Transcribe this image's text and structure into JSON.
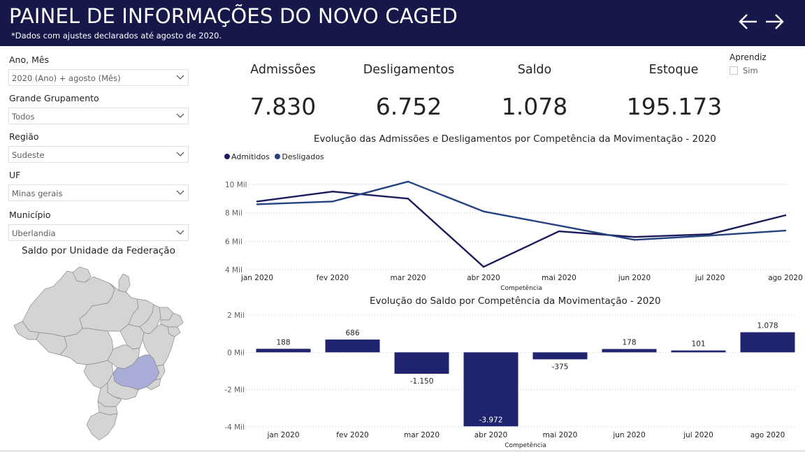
{
  "header": {
    "title": "PAINEL DE INFORMAÇÕES DO NOVO CAGED",
    "subtitle": "*Dados com ajustes declarados até agosto de 2020.",
    "back_icon": "arrow-left-icon",
    "forward_icon": "arrow-right-icon"
  },
  "filters": [
    {
      "label": "Ano, Mês",
      "value": "2020 (Ano) + agosto (Mês)"
    },
    {
      "label": "Grande Grupamento",
      "value": "Todos"
    },
    {
      "label": "Região",
      "value": "Sudeste"
    },
    {
      "label": "UF",
      "value": "Minas gerais"
    },
    {
      "label": "Município",
      "value": "Uberlandia"
    }
  ],
  "map": {
    "title": "Saldo por Unidade da Federação",
    "highlight_color": "#a9acd6",
    "base_color": "#d4d4d4"
  },
  "kpis": [
    {
      "label": "Admissões",
      "value": "7.830"
    },
    {
      "label": "Desligamentos",
      "value": "6.752"
    },
    {
      "label": "Saldo",
      "value": "1.078"
    },
    {
      "label": "Estoque",
      "value": "195.173"
    }
  ],
  "aprendiz": {
    "title": "Aprendiz",
    "option": "Sim",
    "checked": false
  },
  "colors": {
    "header_bg": "#16184a",
    "admitidos": "#1b1c5c",
    "desligados": "#24437f",
    "saldo_bar": "#20246e"
  },
  "chart_data": [
    {
      "type": "line",
      "title": "Evolução das Admissões e Desligamentos por Competência da Movimentação - 2020",
      "xlabel": "Competência",
      "ylabel": "",
      "categories": [
        "jan 2020",
        "fev 2020",
        "mar 2020",
        "abr 2020",
        "mai 2020",
        "jun 2020",
        "jul 2020",
        "ago 2020"
      ],
      "y_ticks": [
        "4 Mil",
        "6 Mil",
        "8 Mil",
        "10 Mil"
      ],
      "y_tick_values": [
        4000,
        6000,
        8000,
        10000
      ],
      "ylim": [
        4000,
        10000
      ],
      "legend_position": "top-left",
      "series": [
        {
          "name": "Admitidos",
          "values": [
            8800,
            9500,
            9000,
            4200,
            6700,
            6300,
            6500,
            7830
          ]
        },
        {
          "name": "Desligados",
          "values": [
            8600,
            8800,
            10200,
            8100,
            7100,
            6100,
            6400,
            6752
          ]
        }
      ],
      "grid": true
    },
    {
      "type": "bar",
      "title": "Evolução do Saldo por Competência da Movimentação - 2020",
      "xlabel": "Competência",
      "ylabel": "",
      "categories": [
        "jan 2020",
        "fev 2020",
        "mar 2020",
        "abr 2020",
        "mai 2020",
        "jun 2020",
        "jul 2020",
        "ago 2020"
      ],
      "values": [
        188,
        686,
        -1150,
        -3972,
        -375,
        178,
        101,
        1078
      ],
      "value_labels": [
        "188",
        "686",
        "-1.150",
        "-3.972",
        "-375",
        "178",
        "101",
        "1.078"
      ],
      "y_ticks": [
        "-4 Mil",
        "-2 Mil",
        "0 Mil",
        "2 Mil"
      ],
      "y_tick_values": [
        -4000,
        -2000,
        0,
        2000
      ],
      "ylim": [
        -4000,
        2000
      ],
      "grid": true
    }
  ]
}
